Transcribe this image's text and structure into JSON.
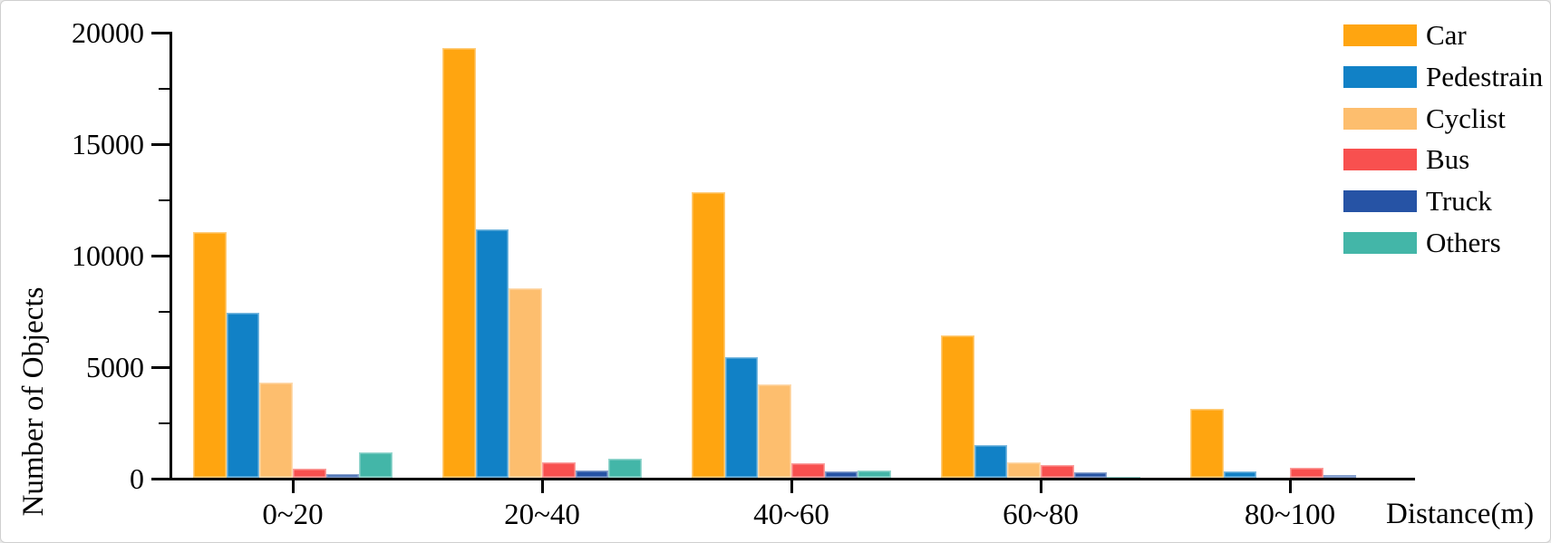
{
  "figure": {
    "background": "#ffffff",
    "border_color": "#cfcfcf"
  },
  "chart_data": {
    "type": "bar",
    "title": "",
    "xlabel": "Distance(m)",
    "ylabel": "Number of Objects",
    "categories": [
      "0~20",
      "20~40",
      "40~60",
      "60~80",
      "80~100"
    ],
    "series": [
      {
        "name": "Car",
        "color": "#FFA510",
        "values": [
          11000,
          19250,
          12800,
          6400,
          3100
        ]
      },
      {
        "name": "Pedestrain",
        "color": "#1181C6",
        "values": [
          7400,
          11150,
          5400,
          1450,
          300
        ]
      },
      {
        "name": "Cyclist",
        "color": "#FDBE6E",
        "values": [
          4250,
          8500,
          4200,
          680,
          0
        ]
      },
      {
        "name": "Bus",
        "color": "#F8504F",
        "values": [
          400,
          700,
          650,
          550,
          430
        ]
      },
      {
        "name": "Truck",
        "color": "#2653A5",
        "values": [
          150,
          330,
          280,
          240,
          110
        ]
      },
      {
        "name": "Others",
        "color": "#43B6A8",
        "values": [
          1130,
          870,
          310,
          50,
          0
        ]
      }
    ],
    "ylim": [
      0,
      20000
    ],
    "y_major_ticks": [
      0,
      5000,
      10000,
      15000,
      20000
    ],
    "y_minor_tick_interval": 2500,
    "grid": false,
    "legend_position": "top-right",
    "axis_color": "#000000"
  }
}
